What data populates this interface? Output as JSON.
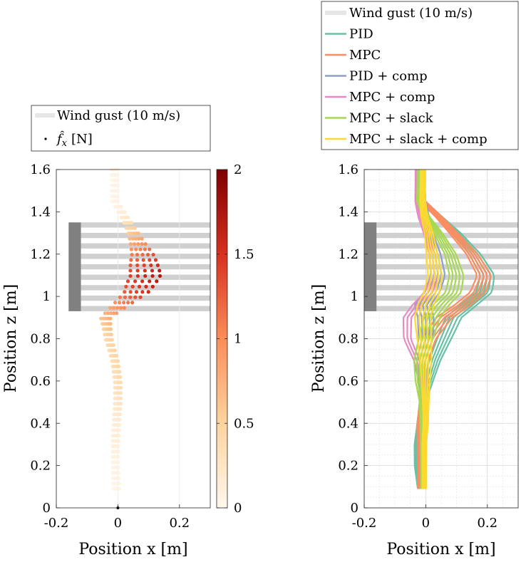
{
  "chart_data": [
    {
      "type": "scatter",
      "legend_position": "top",
      "legend": {
        "gust": "Wind gust (10 m/s)",
        "force_symbol": "f̂",
        "force_subscript": "x",
        "force_unit": "[N]"
      },
      "xlabel": "Position x [m]",
      "ylabel": "Position z [m]",
      "xlim": [
        -0.2,
        0.3
      ],
      "ylim": [
        0,
        1.6
      ],
      "xticks": [
        "-0.2",
        "0",
        "0.2"
      ],
      "xtick_values": [
        -0.2,
        0,
        0.2
      ],
      "yticks": [
        "0",
        "0.2",
        "0.4",
        "0.6",
        "0.8",
        "1",
        "1.2",
        "1.4",
        "1.6"
      ],
      "ytick_values": [
        0,
        0.2,
        0.4,
        0.6,
        0.8,
        1.0,
        1.2,
        1.4,
        1.6
      ],
      "colorbar": {
        "range": [
          0,
          2
        ],
        "tick_labels": [
          "0",
          "0.5",
          "1",
          "1.5",
          "2"
        ],
        "tick_values": [
          0,
          0.5,
          1,
          1.5,
          2
        ],
        "colors": [
          "#fff7ec",
          "#fdd49e",
          "#fc8d59",
          "#d7301f",
          "#7f0000"
        ]
      },
      "wind_gust": {
        "source_x": [
          -0.16,
          -0.12
        ],
        "z_range": [
          0.93,
          1.35
        ],
        "x_end": 0.3,
        "stripe_count": 9,
        "source_color": "#808080",
        "stripe_color": "#d0d0d0"
      },
      "trajectory": {
        "runs": 5,
        "z": [
          1.6,
          1.45,
          1.38,
          1.3,
          1.2,
          1.1,
          1.02,
          0.96,
          0.9,
          0.8,
          0.7,
          0.6,
          0.5,
          0.4,
          0.3,
          0.2,
          0.09
        ],
        "x": [
          -0.01,
          -0.01,
          0.02,
          0.05,
          0.08,
          0.09,
          0.06,
          0.01,
          -0.04,
          -0.03,
          -0.01,
          0.0,
          0.0,
          -0.005,
          -0.008,
          -0.008,
          -0.005
        ],
        "force": [
          0.05,
          0.05,
          0.15,
          0.6,
          1.2,
          1.6,
          1.4,
          1.0,
          0.7,
          0.45,
          0.4,
          0.35,
          0.25,
          0.15,
          0.1,
          0.05,
          0.05
        ]
      }
    },
    {
      "type": "line",
      "legend_position": "top",
      "legend": [
        "Wind gust (10 m/s)",
        "PID",
        "MPC",
        "PID + comp",
        "MPC + comp",
        "MPC + slack",
        "MPC + slack + comp"
      ],
      "xlabel": "Position x [m]",
      "ylabel": "Position z [m]",
      "xlim": [
        -0.2,
        0.3
      ],
      "ylim": [
        0,
        1.6
      ],
      "xticks": [
        "-0.2",
        "0",
        "0.2"
      ],
      "xtick_values": [
        -0.2,
        0,
        0.2
      ],
      "yticks": [
        "0",
        "0.2",
        "0.4",
        "0.6",
        "0.8",
        "1",
        "1.2",
        "1.4",
        "1.6"
      ],
      "ytick_values": [
        0,
        0.2,
        0.4,
        0.6,
        0.8,
        1.0,
        1.2,
        1.4,
        1.6
      ],
      "grid": true,
      "wind_gust": {
        "source_x": [
          -0.2,
          -0.16
        ],
        "z_range": [
          0.93,
          1.35
        ],
        "x_end": 0.3,
        "stripe_count": 9,
        "source_color": "#808080",
        "stripe_color": "#d0d0d0"
      },
      "z": [
        1.6,
        1.45,
        1.38,
        1.3,
        1.2,
        1.1,
        1.02,
        0.96,
        0.9,
        0.8,
        0.7,
        0.6,
        0.5,
        0.4,
        0.3,
        0.2,
        0.09
      ],
      "series": [
        {
          "name": "PID",
          "color": "#66c2a5",
          "runs": 5,
          "x": [
            -0.01,
            -0.01,
            0.04,
            0.1,
            0.16,
            0.2,
            0.19,
            0.14,
            0.09,
            0.06,
            0.03,
            0.01,
            -0.01,
            -0.02,
            -0.03,
            -0.03,
            -0.02
          ]
        },
        {
          "name": "MPC",
          "color": "#fc8d62",
          "runs": 5,
          "x": [
            -0.01,
            -0.01,
            0.04,
            0.09,
            0.15,
            0.19,
            0.17,
            0.12,
            0.06,
            0.01,
            -0.01,
            -0.01,
            -0.01,
            -0.02,
            -0.02,
            -0.02,
            -0.02
          ]
        },
        {
          "name": "PID + comp",
          "color": "#8da0cb",
          "runs": 5,
          "x": [
            -0.01,
            -0.01,
            0.0,
            0.01,
            0.03,
            0.04,
            0.02,
            -0.01,
            0.0,
            0.0,
            -0.02,
            -0.01,
            -0.005,
            -0.005,
            -0.005,
            -0.005,
            -0.005
          ]
        },
        {
          "name": "MPC + comp",
          "color": "#e78ac3",
          "runs": 3,
          "x": [
            -0.03,
            -0.03,
            -0.02,
            0.0,
            0.02,
            0.03,
            0.01,
            -0.03,
            -0.06,
            -0.06,
            -0.03,
            -0.01,
            -0.01,
            -0.01,
            -0.01,
            -0.01,
            -0.01
          ]
        },
        {
          "name": "MPC + slack",
          "color": "#a6d854",
          "runs": 5,
          "x": [
            -0.02,
            -0.02,
            0.0,
            0.04,
            0.08,
            0.1,
            0.09,
            0.05,
            0.02,
            0.0,
            -0.02,
            -0.02,
            -0.01,
            -0.01,
            -0.01,
            -0.01,
            -0.01
          ]
        },
        {
          "name": "MPC + slack + comp",
          "color": "#ffd92f",
          "runs": 5,
          "x": [
            -0.01,
            -0.01,
            -0.005,
            0.01,
            0.02,
            0.03,
            0.02,
            0.0,
            -0.01,
            -0.005,
            0.0,
            0.0,
            0.0,
            0.0,
            -0.005,
            -0.005,
            -0.005
          ]
        }
      ]
    }
  ]
}
